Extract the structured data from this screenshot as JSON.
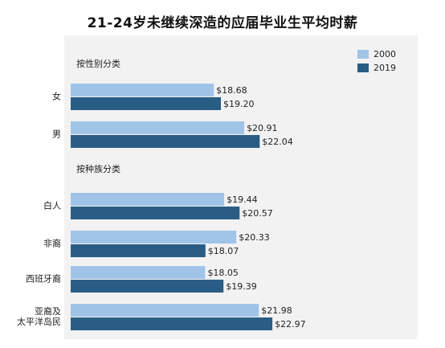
{
  "title": "21-24岁未继续深造的应届毕业生平均时薪",
  "colors": {
    "y2000": "#a0c4e8",
    "y2019": "#2a5d84",
    "panel": "#f2f2f2"
  },
  "chart_data": {
    "type": "bar",
    "orientation": "horizontal",
    "title": "21-24岁未继续深造的应届毕业生平均时薪",
    "legend_position": "top-right",
    "series": [
      {
        "name": "2000",
        "color": "#a0c4e8"
      },
      {
        "name": "2019",
        "color": "#2a5d84"
      }
    ],
    "groups": [
      {
        "heading": "按性别分类",
        "categories": [
          {
            "label": [
              "女"
            ],
            "values": [
              18.68,
              19.2
            ],
            "value_labels": [
              "$18.68",
              "$19.20"
            ]
          },
          {
            "label": [
              "男"
            ],
            "values": [
              20.91,
              22.04
            ],
            "value_labels": [
              "$20.91",
              "$22.04"
            ]
          }
        ]
      },
      {
        "heading": "按种族分类",
        "categories": [
          {
            "label": [
              "白人"
            ],
            "values": [
              19.44,
              20.57
            ],
            "value_labels": [
              "$19.44",
              "$20.57"
            ]
          },
          {
            "label": [
              "非裔"
            ],
            "values": [
              20.33,
              18.07
            ],
            "value_labels": [
              "$20.33",
              "$18.07"
            ]
          },
          {
            "label": [
              "西班牙裔"
            ],
            "values": [
              18.05,
              19.39
            ],
            "value_labels": [
              "$18.05",
              "$19.39"
            ]
          },
          {
            "label": [
              "亚裔及",
              "太平洋岛民"
            ],
            "values": [
              21.98,
              22.97
            ],
            "value_labels": [
              "$21.98",
              "$22.97"
            ]
          }
        ]
      }
    ]
  }
}
